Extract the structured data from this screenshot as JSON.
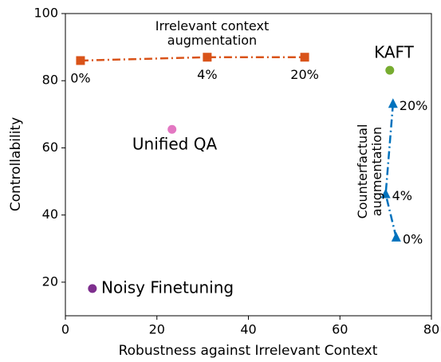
{
  "chart_data": {
    "type": "scatter",
    "xlabel": "Robustness against Irrelevant Context",
    "ylabel": "Controllability",
    "xlim": [
      0,
      80
    ],
    "ylim": [
      10,
      100
    ],
    "xticks": [
      0,
      20,
      40,
      60,
      80
    ],
    "yticks": [
      20,
      40,
      60,
      80,
      100
    ],
    "series": [
      {
        "name": "Irrelevant context augmentation",
        "color": "#d95319",
        "marker": "square",
        "line": true,
        "x": [
          3.3,
          31,
          52.3
        ],
        "values": [
          86,
          87,
          87
        ],
        "point_labels": [
          "0%",
          "4%",
          "20%"
        ]
      },
      {
        "name": "Counterfactual augmentation",
        "color": "#0072bd",
        "marker": "triangle",
        "line": true,
        "x": [
          72.3,
          70.0,
          71.6
        ],
        "values": [
          33.3,
          46.2,
          73.1
        ],
        "point_labels": [
          "0%",
          "4%",
          "20%"
        ]
      },
      {
        "name": "KAFT",
        "color": "#77ac30",
        "marker": "circle",
        "line": false,
        "x": [
          70.9
        ],
        "values": [
          83.1
        ]
      },
      {
        "name": "Unified QA",
        "color": "#e377c2",
        "marker": "circle",
        "line": false,
        "x": [
          23.3
        ],
        "values": [
          65.5
        ]
      },
      {
        "name": "Noisy Finetuning",
        "color": "#7e2f8e",
        "marker": "circle",
        "line": false,
        "x": [
          5.9
        ],
        "values": [
          18.1
        ]
      }
    ]
  }
}
